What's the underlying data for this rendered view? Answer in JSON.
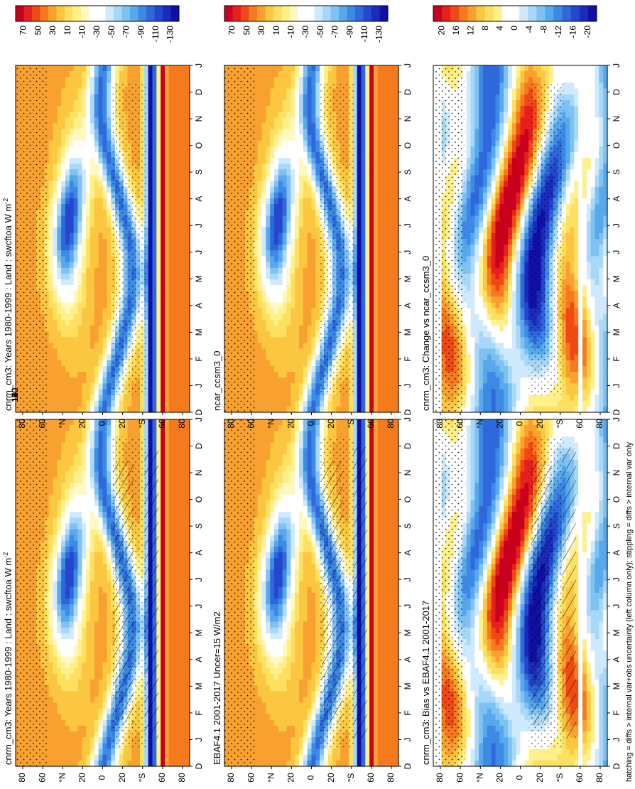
{
  "footnote": "hatching = diffs > internal var+obs uncertainty (left column only); stippling = diffs > internal var only",
  "colorbars": {
    "main": {
      "labels": [
        "70",
        "50",
        "30",
        "10",
        "-10",
        "-30",
        "-50",
        "-70",
        "-90",
        "-110",
        "-130"
      ],
      "colors": [
        "#c8001e",
        "#e6201e",
        "#f04a14",
        "#f57a1e",
        "#f8a030",
        "#fbc640",
        "#fde060",
        "#fef08a",
        "#fff8c0",
        "#ffffff",
        "#ffffff",
        "#cfe9ff",
        "#a8d8f8",
        "#7fc2f2",
        "#58a8ec",
        "#3c8ae6",
        "#2e68da",
        "#2448cc",
        "#1a2cbc",
        "#1010a8"
      ]
    },
    "change": {
      "labels": [
        "20",
        "16",
        "12",
        "8",
        "4",
        "0",
        "-4",
        "-8",
        "-12",
        "-16",
        "-20"
      ],
      "colors": [
        "#c8001e",
        "#e6201e",
        "#f04a14",
        "#f57a1e",
        "#f8a030",
        "#fbc640",
        "#fde060",
        "#fef08a",
        "#ffffff",
        "#ffffff",
        "#cfe9ff",
        "#a8d8f8",
        "#7fc2f2",
        "#58a8ec",
        "#3c8ae6",
        "#2e68da",
        "#2448cc",
        "#1a2cbc",
        "#1010a8"
      ]
    }
  },
  "chart_data": [
    {
      "id": "top-left",
      "type": "heatmap",
      "title": "cnrm_cm3: Years 1980-1999 : Land : swcftoa W m",
      "title_sup": "-2",
      "colorbar": "main",
      "x_ticks": [
        "D",
        "J",
        "F",
        "M",
        "A",
        "M",
        "J",
        "J",
        "A",
        "S",
        "O",
        "N",
        "D",
        "J"
      ],
      "y_ticks": [
        "80",
        "60",
        "°N",
        "20",
        "0",
        "20",
        "°S",
        "60",
        "80"
      ],
      "ylim": [
        -90,
        90
      ],
      "hatching": true,
      "annual_cycle_by_latitude": "low cloud forcing in subtropics (yellow ~0 to 20), strong negative forcing (-70 to -130) near equator/ITCZ and southern midlatitudes"
    },
    {
      "id": "top-right",
      "type": "heatmap",
      "title": "cnrm_cm3: Years 1980-1999 : Land : swcftoa W m",
      "title_sup": "-2",
      "colorbar": "main",
      "x_ticks": [
        "D",
        "J",
        "F",
        "M",
        "A",
        "M",
        "J",
        "J",
        "A",
        "S",
        "O",
        "N",
        "D",
        "J"
      ],
      "y_ticks": [
        "80",
        "60",
        "°N",
        "20",
        "0",
        "20",
        "°S",
        "60",
        "80"
      ],
      "ylim": [
        -90,
        90
      ],
      "hatching": false
    },
    {
      "id": "mid-left",
      "type": "heatmap",
      "title": "EBAF4.1 2001-2017 Uncer=15 W/m2",
      "colorbar": "main",
      "x_ticks": [
        "D",
        "J",
        "F",
        "M",
        "A",
        "M",
        "J",
        "J",
        "A",
        "S",
        "O",
        "N",
        "D",
        "J"
      ],
      "y_ticks": [
        "80",
        "60",
        "°N",
        "20",
        "0",
        "20",
        "°S",
        "60",
        "80"
      ],
      "ylim": [
        -90,
        90
      ],
      "hatching": true
    },
    {
      "id": "mid-right",
      "type": "heatmap",
      "title": "ncar_ccsm3_0",
      "colorbar": "main",
      "x_ticks": [
        "D",
        "J",
        "F",
        "M",
        "A",
        "M",
        "J",
        "J",
        "A",
        "S",
        "O",
        "N",
        "D",
        "J"
      ],
      "y_ticks": [
        "80",
        "60",
        "°N",
        "20",
        "0",
        "20",
        "°S",
        "60",
        "80"
      ],
      "ylim": [
        -90,
        90
      ],
      "hatching": false
    },
    {
      "id": "bot-left",
      "type": "heatmap",
      "title": "cnrm_cm3: Bias vs EBAF4.1 2001-2017",
      "colorbar": "change",
      "x_ticks": [
        "D",
        "J",
        "F",
        "M",
        "A",
        "M",
        "J",
        "J",
        "A",
        "S",
        "O",
        "N",
        "D",
        "J"
      ],
      "y_ticks": [
        "80",
        "60",
        "°N",
        "20",
        "0",
        "20",
        "°S",
        "60",
        "80"
      ],
      "ylim": [
        -90,
        90
      ],
      "hatching": true
    },
    {
      "id": "bot-right",
      "type": "heatmap",
      "title": "cnrm_cm3: Change vs ncar_ccsm3_0",
      "colorbar": "change",
      "x_ticks": [
        "D",
        "J",
        "F",
        "M",
        "A",
        "M",
        "J",
        "J",
        "A",
        "S",
        "O",
        "N",
        "D",
        "J"
      ],
      "y_ticks": [
        "80",
        "60",
        "°N",
        "20",
        "0",
        "20",
        "°S",
        "60",
        "80"
      ],
      "ylim": [
        -90,
        90
      ],
      "hatching": false
    }
  ]
}
